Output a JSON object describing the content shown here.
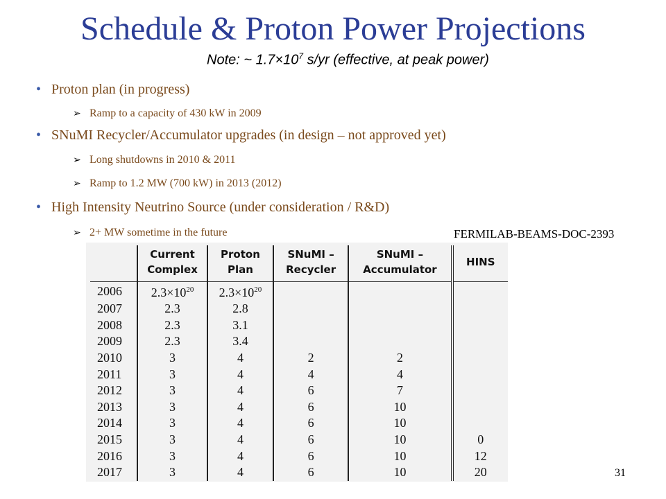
{
  "title": "Schedule & Proton Power Projections",
  "note": {
    "prefix": "Note: ~ 1.7×10",
    "exponent": "7",
    "suffix": " s/yr  (effective, at peak power)"
  },
  "bullets": [
    {
      "text": "Proton plan (in progress)",
      "subs": [
        "Ramp to a capacity of 430 kW in 2009"
      ]
    },
    {
      "text": "SNuMI Recycler/Accumulator upgrades (in design – not approved yet)",
      "subs": [
        "Long shutdowns in 2010 & 2011",
        "Ramp to 1.2 MW (700 kW) in 2013 (2012)"
      ]
    },
    {
      "text": "High Intensity Neutrino Source (under consideration / R&D)",
      "subs": [
        "2+ MW sometime in the future"
      ]
    }
  ],
  "doc_id": "FERMILAB-BEAMS-DOC-2393",
  "page_number": "31",
  "table": {
    "headers": [
      {
        "line1": "",
        "line2": ""
      },
      {
        "line1": "Current",
        "line2": "Complex"
      },
      {
        "line1": "Proton",
        "line2": "Plan"
      },
      {
        "line1": "SNuMI –",
        "line2": "Recycler"
      },
      {
        "line1": "SNuMI –",
        "line2": "Accumulator"
      },
      {
        "line1": "HINS",
        "line2": ""
      }
    ],
    "first_row": {
      "year": "2006",
      "current": "2.3×10",
      "current_exp": "20",
      "proton": "2.3×10",
      "proton_exp": "20"
    },
    "rows": [
      [
        "2007",
        "2.3",
        "2.8",
        "",
        "",
        ""
      ],
      [
        "2008",
        "2.3",
        "3.1",
        "",
        "",
        ""
      ],
      [
        "2009",
        "2.3",
        "3.4",
        "",
        "",
        ""
      ],
      [
        "2010",
        "3",
        "4",
        "2",
        "2",
        ""
      ],
      [
        "2011",
        "3",
        "4",
        "4",
        "4",
        ""
      ],
      [
        "2012",
        "3",
        "4",
        "6",
        "7",
        ""
      ],
      [
        "2013",
        "3",
        "4",
        "6",
        "10",
        ""
      ],
      [
        "2014",
        "3",
        "4",
        "6",
        "10",
        ""
      ],
      [
        "2015",
        "3",
        "4",
        "6",
        "10",
        "0"
      ],
      [
        "2016",
        "3",
        "4",
        "6",
        "10",
        "12"
      ],
      [
        "2017",
        "3",
        "4",
        "6",
        "10",
        "20"
      ]
    ]
  }
}
